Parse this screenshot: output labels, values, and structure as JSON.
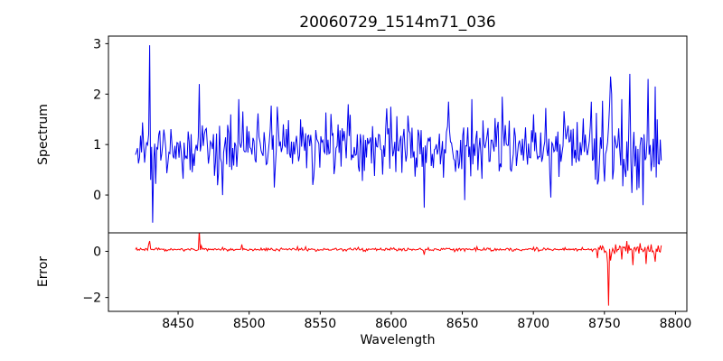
{
  "chart_data": {
    "type": "line",
    "title": "20060729_1514m71_036",
    "xlabel": "Wavelength",
    "x_range": [
      8420,
      8790
    ],
    "x_axis": {
      "min": 8401,
      "max": 8808,
      "ticks": [
        8450,
        8500,
        8550,
        8600,
        8650,
        8700,
        8750,
        8800
      ]
    },
    "n_points": 520,
    "seed": 20060729,
    "grid": false,
    "legend": "none",
    "panels": [
      {
        "name": "spectrum",
        "ylabel": "Spectrum",
        "color": "#0000ee",
        "ticks": [
          0,
          1,
          2,
          3
        ],
        "ylim": [
          -0.75,
          3.15
        ],
        "baseline": 0.95,
        "noise_std": 0.3,
        "noise_std_tail": 0.42,
        "tail_start": 8738,
        "features": [
          [
            8429,
            1.2
          ],
          [
            8430,
            2.97
          ],
          [
            8431,
            0.3
          ],
          [
            8432,
            -0.55
          ],
          [
            8433,
            0.7
          ],
          [
            8465,
            2.2
          ],
          [
            8466,
            1.0
          ],
          [
            8481,
            0.0
          ],
          [
            8493,
            1.9
          ],
          [
            8520,
            1.75
          ],
          [
            8545,
            0.2
          ],
          [
            8570,
            1.8
          ],
          [
            8600,
            1.75
          ],
          [
            8623,
            -0.25
          ],
          [
            8640,
            1.85
          ],
          [
            8652,
            -0.1
          ],
          [
            8657,
            1.9
          ],
          [
            8678,
            1.95
          ],
          [
            8700,
            1.6
          ],
          [
            8712,
            -0.05
          ],
          [
            8741,
            1.85
          ],
          [
            8755,
            2.0
          ],
          [
            8762,
            1.9
          ],
          [
            8768,
            2.4
          ],
          [
            8773,
            0.1
          ],
          [
            8777,
            -0.2
          ],
          [
            8781,
            2.3
          ],
          [
            8786,
            2.15
          ],
          [
            8789,
            1.1
          ]
        ]
      },
      {
        "name": "error",
        "ylabel": "Error",
        "color": "#ff0000",
        "ticks": [
          0,
          -2
        ],
        "ylim": [
          -2.6,
          0.8
        ],
        "baseline": 0.08,
        "noise_std": 0.035,
        "noise_std_tail": 0.12,
        "tail_start": 8745,
        "features": [
          [
            8429,
            0.3
          ],
          [
            8430,
            0.45
          ],
          [
            8431,
            0.1
          ],
          [
            8465,
            0.9
          ],
          [
            8466,
            0.25
          ],
          [
            8495,
            0.3
          ],
          [
            8540,
            0.2
          ],
          [
            8600,
            0.15
          ],
          [
            8623,
            -0.15
          ],
          [
            8660,
            0.2
          ],
          [
            8700,
            0.18
          ],
          [
            8745,
            -0.3
          ],
          [
            8752,
            -0.5
          ],
          [
            8753,
            -2.35
          ],
          [
            8754,
            -0.4
          ],
          [
            8758,
            0.3
          ],
          [
            8762,
            -0.35
          ],
          [
            8766,
            0.45
          ],
          [
            8770,
            -0.6
          ],
          [
            8775,
            0.35
          ],
          [
            8779,
            -0.55
          ],
          [
            8783,
            0.3
          ],
          [
            8786,
            -0.45
          ]
        ]
      }
    ]
  }
}
